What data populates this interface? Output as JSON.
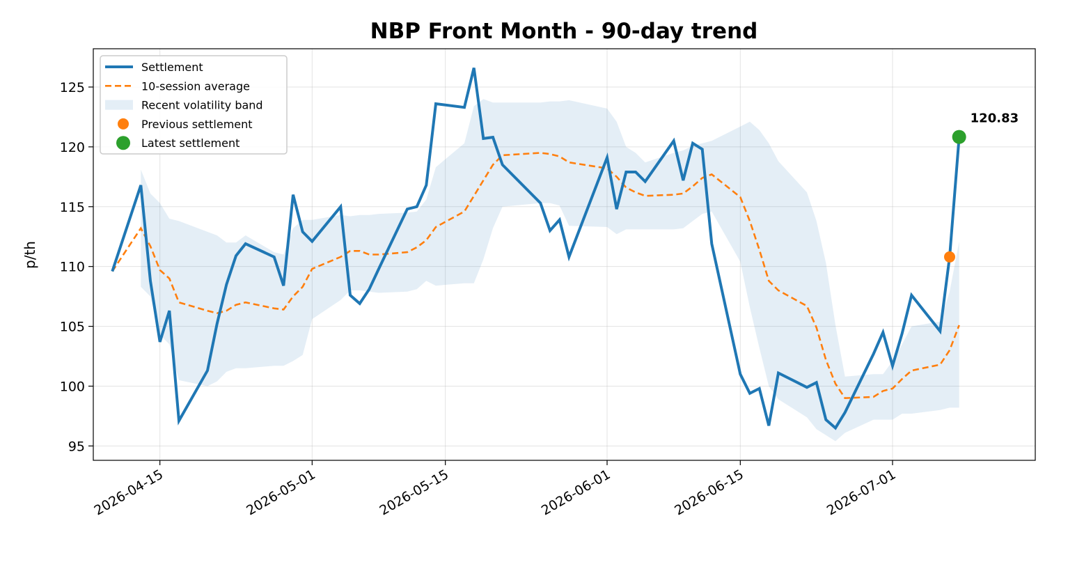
{
  "chart_data": {
    "type": "line",
    "title": "NBP Front Month - 90-day trend",
    "xlabel": "",
    "ylabel": "p/th",
    "ylim": [
      93.8,
      128.2
    ],
    "xlim": [
      "2026-04-08",
      "2026-07-16"
    ],
    "grid": true,
    "legend_position": "top-left",
    "x_ticks": [
      "2026-04-15",
      "2026-05-01",
      "2026-05-15",
      "2026-06-01",
      "2026-06-15",
      "2026-07-01"
    ],
    "y_ticks": [
      95,
      100,
      105,
      110,
      115,
      120,
      125
    ],
    "colors": {
      "settlement": "#1f77b4",
      "average": "#ff7f0e",
      "band": "#1f77b4",
      "previous": "#ff7f0e",
      "latest": "#2ca02c"
    },
    "series": [
      {
        "name": "Settlement",
        "style": "solid",
        "points": [
          [
            "2026-04-10",
            109.6
          ],
          [
            "2026-04-13",
            116.8
          ],
          [
            "2026-04-14",
            108.8
          ],
          [
            "2026-04-15",
            103.7
          ],
          [
            "2026-04-16",
            106.3
          ],
          [
            "2026-04-17",
            97.1
          ],
          [
            "2026-04-20",
            101.3
          ],
          [
            "2026-04-21",
            105.2
          ],
          [
            "2026-04-22",
            108.5
          ],
          [
            "2026-04-23",
            110.9
          ],
          [
            "2026-04-24",
            111.9
          ],
          [
            "2026-04-27",
            110.8
          ],
          [
            "2026-04-28",
            108.4
          ],
          [
            "2026-04-29",
            116.0
          ],
          [
            "2026-04-30",
            112.9
          ],
          [
            "2026-05-01",
            112.1
          ],
          [
            "2026-05-04",
            115.0
          ],
          [
            "2026-05-05",
            107.6
          ],
          [
            "2026-05-06",
            106.9
          ],
          [
            "2026-05-07",
            108.1
          ],
          [
            "2026-05-08",
            109.8
          ],
          [
            "2026-05-11",
            114.8
          ],
          [
            "2026-05-12",
            115.0
          ],
          [
            "2026-05-13",
            116.8
          ],
          [
            "2026-05-14",
            123.6
          ],
          [
            "2026-05-17",
            123.3
          ],
          [
            "2026-05-18",
            126.6
          ],
          [
            "2026-05-19",
            120.7
          ],
          [
            "2026-05-20",
            120.8
          ],
          [
            "2026-05-21",
            118.5
          ],
          [
            "2026-05-25",
            115.3
          ],
          [
            "2026-05-26",
            113.0
          ],
          [
            "2026-05-27",
            113.9
          ],
          [
            "2026-05-28",
            110.8
          ],
          [
            "2026-06-01",
            119.1
          ],
          [
            "2026-06-02",
            114.8
          ],
          [
            "2026-06-03",
            117.9
          ],
          [
            "2026-06-04",
            117.9
          ],
          [
            "2026-06-05",
            117.1
          ],
          [
            "2026-06-08",
            120.5
          ],
          [
            "2026-06-09",
            117.2
          ],
          [
            "2026-06-10",
            120.3
          ],
          [
            "2026-06-11",
            119.8
          ],
          [
            "2026-06-12",
            111.9
          ],
          [
            "2026-06-15",
            101.0
          ],
          [
            "2026-06-16",
            99.4
          ],
          [
            "2026-06-17",
            99.8
          ],
          [
            "2026-06-18",
            96.7
          ],
          [
            "2026-06-19",
            101.1
          ],
          [
            "2026-06-22",
            99.9
          ],
          [
            "2026-06-23",
            100.3
          ],
          [
            "2026-06-24",
            97.2
          ],
          [
            "2026-06-25",
            96.5
          ],
          [
            "2026-06-26",
            97.8
          ],
          [
            "2026-06-29",
            102.7
          ],
          [
            "2026-06-30",
            104.5
          ],
          [
            "2026-07-01",
            101.7
          ],
          [
            "2026-07-02",
            104.4
          ],
          [
            "2026-07-03",
            107.6
          ],
          [
            "2026-07-06",
            104.6
          ],
          [
            "2026-07-07",
            110.8
          ],
          [
            "2026-07-08",
            120.83
          ]
        ]
      },
      {
        "name": "10-session average",
        "style": "dashed",
        "points": [
          [
            "2026-04-10",
            109.6
          ],
          [
            "2026-04-13",
            113.2
          ],
          [
            "2026-04-14",
            111.7
          ],
          [
            "2026-04-15",
            109.7
          ],
          [
            "2026-04-16",
            109.0
          ],
          [
            "2026-04-17",
            107.0
          ],
          [
            "2026-04-20",
            106.3
          ],
          [
            "2026-04-21",
            106.1
          ],
          [
            "2026-04-22",
            106.3
          ],
          [
            "2026-04-23",
            106.8
          ],
          [
            "2026-04-24",
            107.0
          ],
          [
            "2026-04-27",
            106.5
          ],
          [
            "2026-04-28",
            106.4
          ],
          [
            "2026-04-29",
            107.5
          ],
          [
            "2026-04-30",
            108.3
          ],
          [
            "2026-05-01",
            109.8
          ],
          [
            "2026-05-04",
            110.8
          ],
          [
            "2026-05-05",
            111.3
          ],
          [
            "2026-05-06",
            111.3
          ],
          [
            "2026-05-07",
            111.0
          ],
          [
            "2026-05-08",
            111.0
          ],
          [
            "2026-05-11",
            111.2
          ],
          [
            "2026-05-12",
            111.6
          ],
          [
            "2026-05-13",
            112.2
          ],
          [
            "2026-05-14",
            113.3
          ],
          [
            "2026-05-17",
            114.6
          ],
          [
            "2026-05-18",
            115.9
          ],
          [
            "2026-05-19",
            117.2
          ],
          [
            "2026-05-20",
            118.5
          ],
          [
            "2026-05-21",
            119.3
          ],
          [
            "2026-05-25",
            119.5
          ],
          [
            "2026-05-26",
            119.4
          ],
          [
            "2026-05-27",
            119.2
          ],
          [
            "2026-05-28",
            118.7
          ],
          [
            "2026-06-01",
            118.2
          ],
          [
            "2026-06-02",
            117.5
          ],
          [
            "2026-06-03",
            116.6
          ],
          [
            "2026-06-04",
            116.2
          ],
          [
            "2026-06-05",
            115.9
          ],
          [
            "2026-06-08",
            116.0
          ],
          [
            "2026-06-09",
            116.1
          ],
          [
            "2026-06-10",
            116.7
          ],
          [
            "2026-06-11",
            117.4
          ],
          [
            "2026-06-12",
            117.7
          ],
          [
            "2026-06-15",
            115.8
          ],
          [
            "2026-06-16",
            113.8
          ],
          [
            "2026-06-17",
            111.4
          ],
          [
            "2026-06-18",
            108.8
          ],
          [
            "2026-06-19",
            108.0
          ],
          [
            "2026-06-22",
            106.7
          ],
          [
            "2026-06-23",
            104.9
          ],
          [
            "2026-06-24",
            102.2
          ],
          [
            "2026-06-25",
            100.2
          ],
          [
            "2026-06-26",
            99.0
          ],
          [
            "2026-06-29",
            99.1
          ],
          [
            "2026-06-30",
            99.6
          ],
          [
            "2026-07-01",
            99.8
          ],
          [
            "2026-07-02",
            100.6
          ],
          [
            "2026-07-03",
            101.3
          ],
          [
            "2026-07-06",
            101.8
          ],
          [
            "2026-07-07",
            103.0
          ],
          [
            "2026-07-08",
            105.1
          ]
        ]
      }
    ],
    "band": {
      "name": "Recent volatility band",
      "upper": [
        [
          "2026-04-13",
          118.1
        ],
        [
          "2026-04-14",
          116.1
        ],
        [
          "2026-04-15",
          115.3
        ],
        [
          "2026-04-16",
          114.0
        ],
        [
          "2026-04-17",
          113.8
        ],
        [
          "2026-04-20",
          112.9
        ],
        [
          "2026-04-21",
          112.6
        ],
        [
          "2026-04-22",
          112.0
        ],
        [
          "2026-04-23",
          112.0
        ],
        [
          "2026-04-24",
          112.6
        ],
        [
          "2026-04-27",
          111.2
        ],
        [
          "2026-04-28",
          111.0
        ],
        [
          "2026-04-29",
          113.2
        ],
        [
          "2026-04-30",
          113.9
        ],
        [
          "2026-05-01",
          113.9
        ],
        [
          "2026-05-04",
          114.3
        ],
        [
          "2026-05-05",
          114.2
        ],
        [
          "2026-05-06",
          114.3
        ],
        [
          "2026-05-07",
          114.3
        ],
        [
          "2026-05-08",
          114.4
        ],
        [
          "2026-05-11",
          114.5
        ],
        [
          "2026-05-12",
          114.6
        ],
        [
          "2026-05-13",
          115.6
        ],
        [
          "2026-05-14",
          118.3
        ],
        [
          "2026-05-17",
          120.3
        ],
        [
          "2026-05-18",
          123.4
        ],
        [
          "2026-05-19",
          124.0
        ],
        [
          "2026-05-20",
          123.7
        ],
        [
          "2026-05-21",
          123.7
        ],
        [
          "2026-05-25",
          123.7
        ],
        [
          "2026-05-26",
          123.8
        ],
        [
          "2026-05-27",
          123.8
        ],
        [
          "2026-05-28",
          123.9
        ],
        [
          "2026-06-01",
          123.2
        ],
        [
          "2026-06-02",
          122.1
        ],
        [
          "2026-06-03",
          120.0
        ],
        [
          "2026-06-04",
          119.5
        ],
        [
          "2026-06-05",
          118.7
        ],
        [
          "2026-06-08",
          119.5
        ],
        [
          "2026-06-09",
          119.7
        ],
        [
          "2026-06-10",
          120.1
        ],
        [
          "2026-06-11",
          120.3
        ],
        [
          "2026-06-12",
          120.5
        ],
        [
          "2026-06-15",
          121.7
        ],
        [
          "2026-06-16",
          122.1
        ],
        [
          "2026-06-17",
          121.4
        ],
        [
          "2026-06-18",
          120.3
        ],
        [
          "2026-06-19",
          118.8
        ],
        [
          "2026-06-22",
          116.2
        ],
        [
          "2026-06-23",
          113.8
        ],
        [
          "2026-06-24",
          110.3
        ],
        [
          "2026-06-25",
          105.1
        ],
        [
          "2026-06-26",
          100.8
        ],
        [
          "2026-06-29",
          101.0
        ],
        [
          "2026-06-30",
          101.0
        ],
        [
          "2026-07-01",
          102.1
        ],
        [
          "2026-07-02",
          103.5
        ],
        [
          "2026-07-03",
          105.0
        ],
        [
          "2026-07-06",
          105.4
        ],
        [
          "2026-07-07",
          107.9
        ],
        [
          "2026-07-08",
          112.1
        ]
      ],
      "lower": [
        [
          "2026-04-13",
          108.3
        ],
        [
          "2026-04-14",
          107.5
        ],
        [
          "2026-04-15",
          104.3
        ],
        [
          "2026-04-16",
          103.5
        ],
        [
          "2026-04-17",
          100.5
        ],
        [
          "2026-04-20",
          100.0
        ],
        [
          "2026-04-21",
          100.4
        ],
        [
          "2026-04-22",
          101.2
        ],
        [
          "2026-04-23",
          101.5
        ],
        [
          "2026-04-24",
          101.5
        ],
        [
          "2026-04-27",
          101.7
        ],
        [
          "2026-04-28",
          101.7
        ],
        [
          "2026-04-29",
          102.1
        ],
        [
          "2026-04-30",
          102.6
        ],
        [
          "2026-05-01",
          105.6
        ],
        [
          "2026-05-04",
          107.2
        ],
        [
          "2026-05-05",
          108.0
        ],
        [
          "2026-05-06",
          108.0
        ],
        [
          "2026-05-07",
          107.9
        ],
        [
          "2026-05-08",
          107.8
        ],
        [
          "2026-05-11",
          107.9
        ],
        [
          "2026-05-12",
          108.1
        ],
        [
          "2026-05-13",
          108.8
        ],
        [
          "2026-05-14",
          108.4
        ],
        [
          "2026-05-17",
          108.6
        ],
        [
          "2026-05-18",
          108.6
        ],
        [
          "2026-05-19",
          110.6
        ],
        [
          "2026-05-20",
          113.2
        ],
        [
          "2026-05-21",
          115.0
        ],
        [
          "2026-05-25",
          115.3
        ],
        [
          "2026-05-26",
          115.3
        ],
        [
          "2026-05-27",
          115.1
        ],
        [
          "2026-05-28",
          113.4
        ],
        [
          "2026-06-01",
          113.3
        ],
        [
          "2026-06-02",
          112.7
        ],
        [
          "2026-06-03",
          113.1
        ],
        [
          "2026-06-04",
          113.1
        ],
        [
          "2026-06-05",
          113.1
        ],
        [
          "2026-06-08",
          113.1
        ],
        [
          "2026-06-09",
          113.2
        ],
        [
          "2026-06-10",
          113.8
        ],
        [
          "2026-06-11",
          114.4
        ],
        [
          "2026-06-12",
          114.6
        ],
        [
          "2026-06-15",
          110.4
        ],
        [
          "2026-06-16",
          106.6
        ],
        [
          "2026-06-17",
          103.2
        ],
        [
          "2026-06-18",
          100.0
        ],
        [
          "2026-06-19",
          98.9
        ],
        [
          "2026-06-22",
          97.4
        ],
        [
          "2026-06-23",
          96.4
        ],
        [
          "2026-06-24",
          95.9
        ],
        [
          "2026-06-25",
          95.4
        ],
        [
          "2026-06-26",
          96.1
        ],
        [
          "2026-06-29",
          97.2
        ],
        [
          "2026-06-30",
          97.2
        ],
        [
          "2026-07-01",
          97.2
        ],
        [
          "2026-07-02",
          97.7
        ],
        [
          "2026-07-03",
          97.7
        ],
        [
          "2026-07-06",
          98.0
        ],
        [
          "2026-07-07",
          98.2
        ],
        [
          "2026-07-08",
          98.2
        ]
      ]
    },
    "markers": [
      {
        "name": "Previous settlement",
        "x": "2026-07-07",
        "y": 110.8
      },
      {
        "name": "Latest settlement",
        "x": "2026-07-08",
        "y": 120.83,
        "label": "120.83"
      }
    ]
  }
}
